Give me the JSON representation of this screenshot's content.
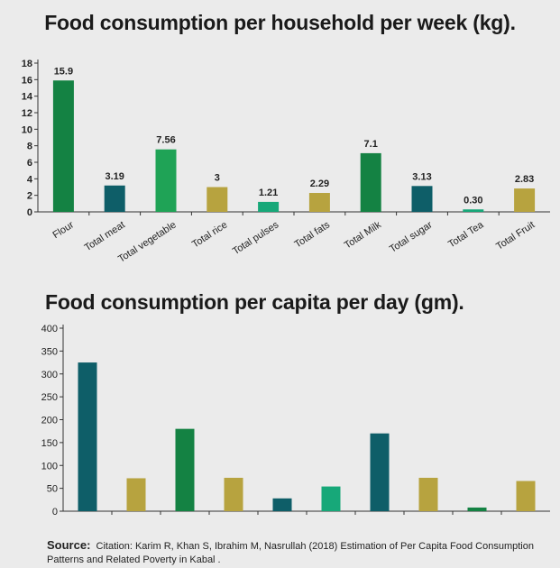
{
  "chart_data": [
    {
      "type": "bar",
      "title": "Food consumption per household per week (kg).",
      "categories": [
        "Flour",
        "Total meat",
        "Total vegetable",
        "Total rice",
        "Total pulses",
        "Total fats",
        "Total Milk",
        "Total sugar",
        "Total Tea",
        "Total Fruit"
      ],
      "values": [
        15.9,
        3.19,
        7.56,
        3,
        1.21,
        2.29,
        7.1,
        3.13,
        0.3,
        2.83
      ],
      "data_labels": [
        "15.9",
        "3.19",
        "7.56",
        "3",
        "1.21",
        "2.29",
        "7.1",
        "3.13",
        "0.30",
        "2.83"
      ],
      "colors": [
        "#148243",
        "#0e5e68",
        "#1fa356",
        "#b7a33f",
        "#17a879",
        "#b7a33f",
        "#148243",
        "#0e5e68",
        "#17a879",
        "#b7a33f"
      ],
      "ylim": [
        0,
        18
      ],
      "yticks": [
        0,
        2,
        4,
        6,
        8,
        10,
        12,
        14,
        16,
        18
      ],
      "xlabel": "",
      "ylabel": ""
    },
    {
      "type": "bar",
      "title": "Food consumption per capita per day (gm).",
      "values": [
        325,
        72,
        180,
        73,
        28,
        54,
        170,
        73,
        8,
        66
      ],
      "colors": [
        "#0e5e68",
        "#b7a33f",
        "#148243",
        "#b7a33f",
        "#0e5e68",
        "#17a879",
        "#0e5e68",
        "#b7a33f",
        "#148243",
        "#b7a33f"
      ],
      "ylim": [
        0,
        400
      ],
      "yticks": [
        0,
        50,
        100,
        150,
        200,
        250,
        300,
        350,
        400
      ],
      "xlabel": "",
      "ylabel": ""
    }
  ],
  "source": {
    "label": "Source:",
    "text": "Citation: Karim R, Khan S, Ibrahim M, Nasrullah (2018) Estimation of Per Capita Food Consumption Patterns and Related Poverty in Kabal ."
  }
}
